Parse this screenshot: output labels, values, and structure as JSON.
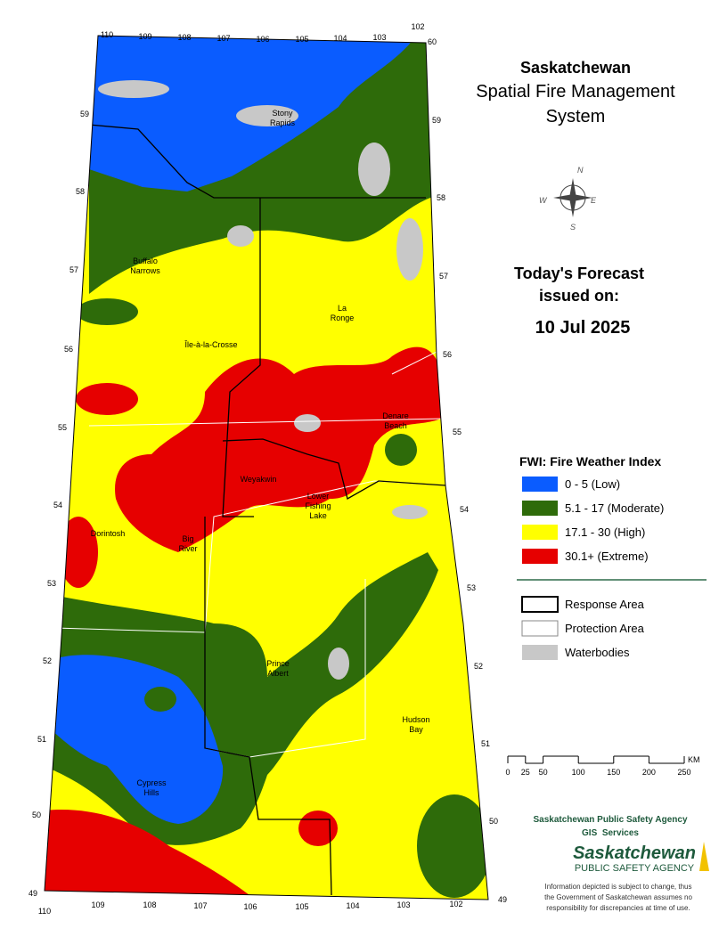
{
  "header": {
    "title": "Saskatchewan",
    "subtitle_lines": [
      "Spatial Fire Management",
      "System"
    ]
  },
  "compass": {
    "n": "N",
    "e": "E",
    "s": "S",
    "w": "W"
  },
  "forecast": {
    "lines": [
      "Today's Forecast",
      "issued on:"
    ],
    "date": "10 Jul 2025"
  },
  "legend": {
    "title": "FWI: Fire Weather Index",
    "items": [
      {
        "label": "0 - 5 (Low)",
        "color": "#0a5cff"
      },
      {
        "label": "5.1 - 17 (Moderate)",
        "color": "#2e6b0a"
      },
      {
        "label": "17.1 - 30 (High)",
        "color": "#ffff00"
      },
      {
        "label": "30.1+ (Extreme)",
        "color": "#e60000"
      }
    ]
  },
  "boundaries": [
    {
      "label": "Response Area"
    },
    {
      "label": "Protection Area"
    },
    {
      "label": "Waterbodies"
    }
  ],
  "scale": {
    "ticks": [
      0,
      25,
      50,
      100,
      150,
      200,
      250
    ],
    "unit": "KM"
  },
  "agency": {
    "name": "Saskatchewan Public Safety Agency",
    "unit": "GIS  Services",
    "logo_name": "Saskatchewan",
    "logo_sub": "PUBLIC SAFETY AGENCY",
    "disclaimer": [
      "Information depicted is subject to change, thus",
      "the Government of Saskatchewan assumes no",
      "responsibility for discrepancies at time of use."
    ]
  },
  "map": {
    "places": [
      {
        "lines": [
          "Stony",
          "Rapids"
        ]
      },
      {
        "lines": [
          "Buffalo",
          "Narrows"
        ]
      },
      {
        "lines": [
          "La",
          "Ronge"
        ]
      },
      {
        "lines": [
          "Île-à-la-Crosse"
        ]
      },
      {
        "lines": [
          "Denare",
          "Beach"
        ]
      },
      {
        "lines": [
          "Weyakwin"
        ]
      },
      {
        "lines": [
          "Lower",
          "Fishing",
          "Lake"
        ]
      },
      {
        "lines": [
          "Dorintosh"
        ]
      },
      {
        "lines": [
          "Big",
          "River"
        ]
      },
      {
        "lines": [
          "Prince",
          "Albert"
        ]
      },
      {
        "lines": [
          "Hudson",
          "Bay"
        ]
      },
      {
        "lines": [
          "Cypress",
          "Hills"
        ]
      }
    ],
    "lon_top": [
      110,
      109,
      108,
      107,
      106,
      105,
      104,
      103,
      102
    ],
    "lon_bottom": [
      110,
      109,
      108,
      107,
      106,
      105,
      104,
      103,
      102
    ],
    "lat_left": [
      59,
      58,
      57,
      56,
      55,
      54,
      53,
      52,
      51,
      50,
      49
    ],
    "lat_right": [
      60,
      59,
      58,
      57,
      56,
      55,
      54,
      53,
      52,
      51,
      50,
      49
    ]
  }
}
